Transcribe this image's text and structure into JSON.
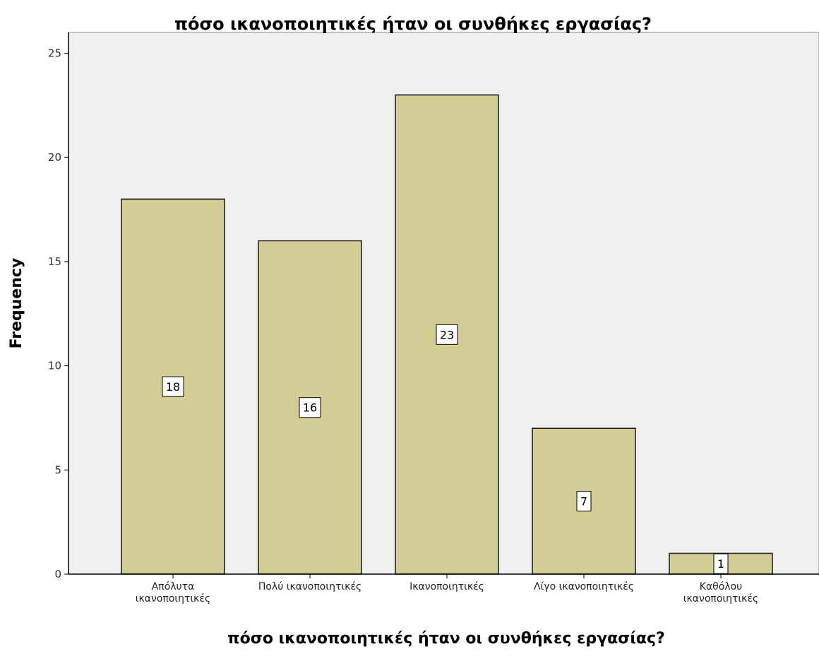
{
  "chart_data": {
    "type": "bar",
    "title": "πόσο ικανοποιητικές ήταν οι συνθήκες εργασίας?",
    "xlabel": "πόσο ικανοποιητικές ήταν οι συνθήκες εργασίας?",
    "ylabel": "Frequency",
    "categories": [
      [
        "Απόλυτα",
        "ικανοποιητικές"
      ],
      [
        "Πολύ ικανοποιητικές"
      ],
      [
        "Ικανοποιητικές"
      ],
      [
        "Λίγο ικανοποιητικές"
      ],
      [
        "Καθόλου",
        "ικανοποιητικές"
      ]
    ],
    "values": [
      18,
      16,
      23,
      7,
      1
    ],
    "data_labels": [
      "18",
      "16",
      "23",
      "7",
      "1"
    ],
    "ylim": [
      0,
      26
    ],
    "yticks": [
      0,
      5,
      10,
      15,
      20,
      25
    ],
    "ytick_labels": [
      "0",
      "5",
      "10",
      "15",
      "20",
      "25"
    ],
    "grid": false,
    "legend": "none",
    "colors": {
      "bar_fill": "#d3cd95",
      "bar_stroke": "#1a1a1a",
      "plot_background": "#f0f0f0",
      "axis": "#000000",
      "label_box_fill": "#ffffff"
    }
  }
}
